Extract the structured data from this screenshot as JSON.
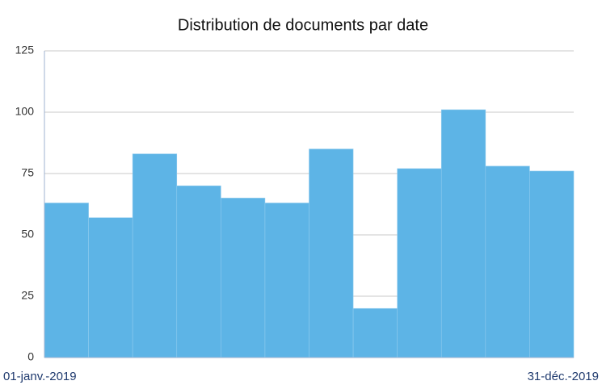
{
  "chart_data": {
    "type": "histogram",
    "title": "Distribution de documents par date",
    "x_labels": [
      "01-janv.-2019",
      "31-déc.-2019"
    ],
    "values": [
      63,
      57,
      83,
      70,
      65,
      63,
      85,
      20,
      77,
      101,
      78,
      76
    ],
    "color": "#5db4e6",
    "ylim": [
      0,
      125
    ],
    "yticks": [
      0,
      25,
      50,
      75,
      100,
      125
    ],
    "grid": true
  }
}
